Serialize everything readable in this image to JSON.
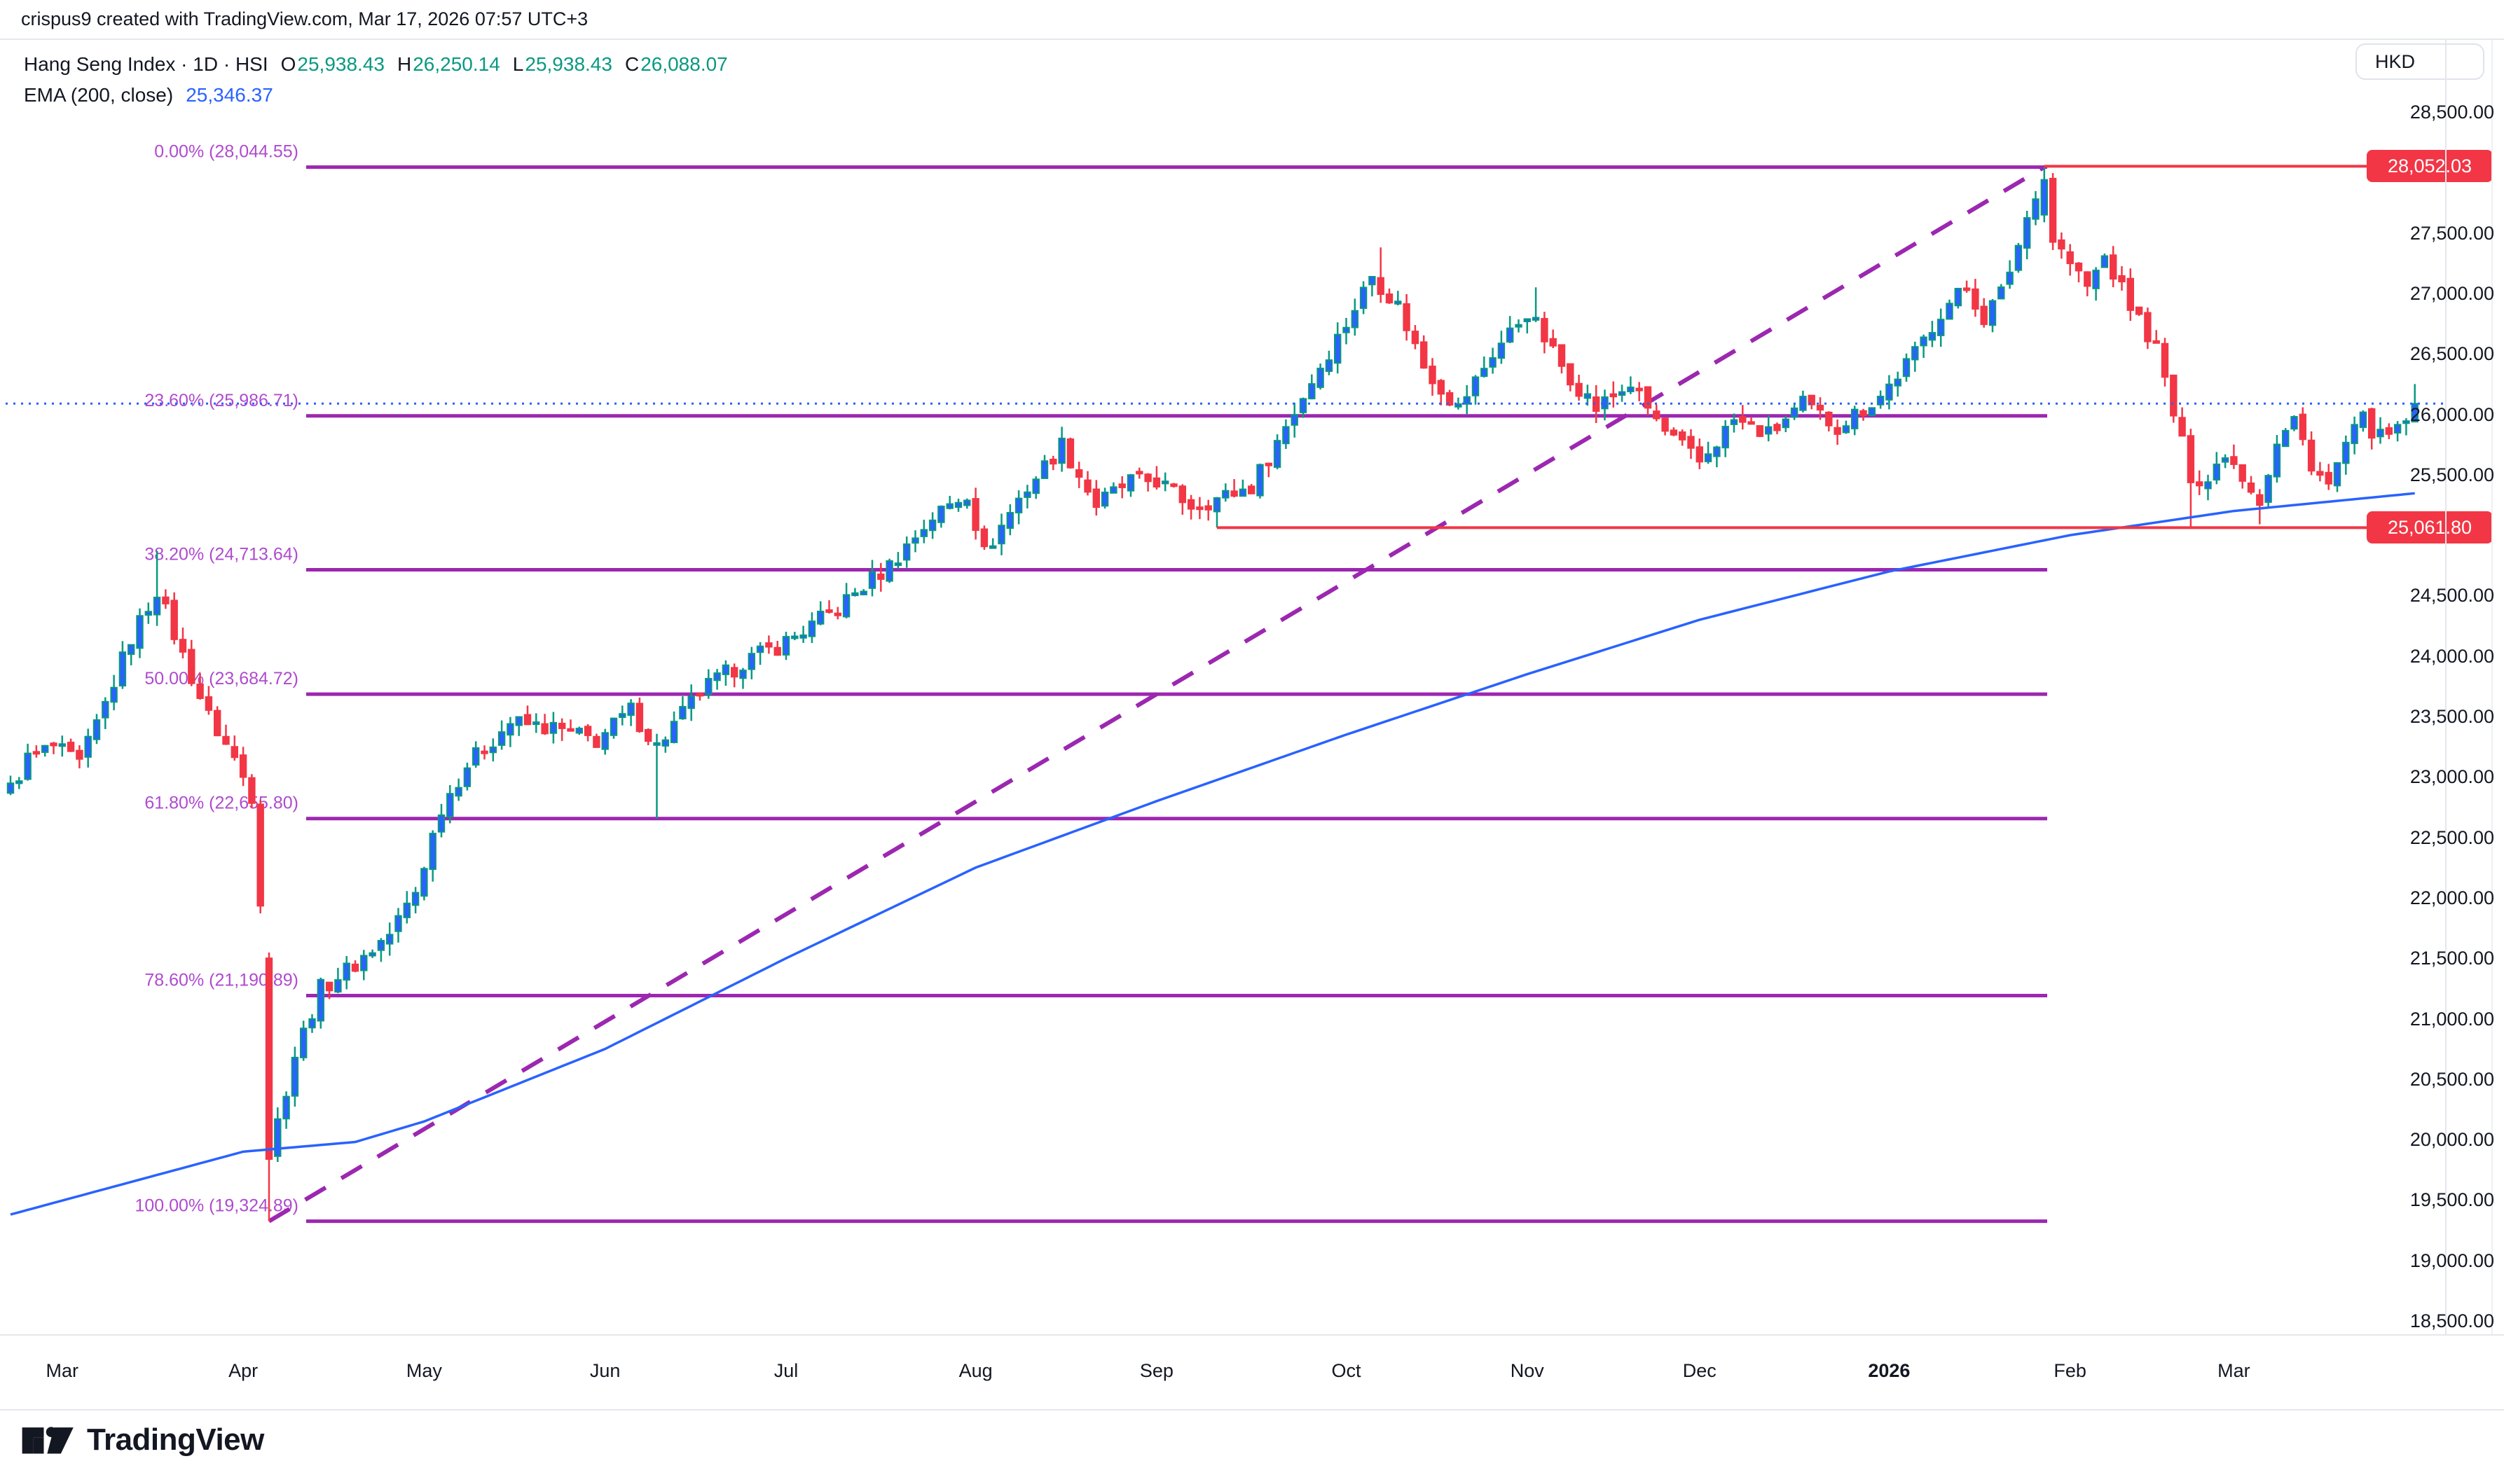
{
  "meta": {
    "credit": "crispus9 created with TradingView.com, Mar 17, 2026 07:57 UTC+3"
  },
  "legend": {
    "title": "Hang Seng Index · 1D · HSI",
    "open_label": "O",
    "open": "25,938.43",
    "high_label": "H",
    "high": "26,250.14",
    "low_label": "L",
    "low": "25,938.43",
    "close_label": "C",
    "close": "26,088.07",
    "ema_label": "EMA (200, close)",
    "ema_value": "25,346.37"
  },
  "axis": {
    "currency": "HKD"
  },
  "footer": {
    "brand": "TradingView"
  },
  "chart_data": {
    "type": "candlestick",
    "title": "Hang Seng Index",
    "timeframe": "1D",
    "symbol": "HSI",
    "currency": "HKD",
    "last_bar": {
      "open": 25938.43,
      "high": 26250.14,
      "low": 25938.43,
      "close": 26088.07
    },
    "ema_200": 25346.37,
    "current_price_line": 26088.07,
    "price_flags": [
      {
        "label": "28,052.03",
        "value": 28052.03
      },
      {
        "label": "25,061.80",
        "value": 25061.8
      }
    ],
    "fib_retracement": {
      "levels": [
        {
          "label": "0.00% (28,044.55)",
          "pct": 0,
          "value": 28044.55
        },
        {
          "label": "23.60% (25,986.71)",
          "pct": 23.6,
          "value": 25986.71
        },
        {
          "label": "38.20% (24,713.64)",
          "pct": 38.2,
          "value": 24713.64
        },
        {
          "label": "50.00% (23,684.72)",
          "pct": 50,
          "value": 23684.72
        },
        {
          "label": "61.80% (22,655.80)",
          "pct": 61.8,
          "value": 22655.8
        },
        {
          "label": "78.60% (21,190.89)",
          "pct": 78.6,
          "value": 21190.89
        },
        {
          "label": "100.00% (19,324.89)",
          "pct": 100,
          "value": 19324.89
        }
      ]
    },
    "trendline": {
      "style": "dashed",
      "from_value": 19324.89,
      "to_value": 28044.55
    },
    "y_axis": {
      "ticks": [
        {
          "t": "28,500.00",
          "v": 28500
        },
        {
          "t": "27,500.00",
          "v": 27500
        },
        {
          "t": "27,000.00",
          "v": 27000
        },
        {
          "t": "26,500.00",
          "v": 26500
        },
        {
          "t": "26,000.00",
          "v": 26000
        },
        {
          "t": "25,500.00",
          "v": 25500
        },
        {
          "t": "24,500.00",
          "v": 24500
        },
        {
          "t": "24,000.00",
          "v": 24000
        },
        {
          "t": "23,500.00",
          "v": 23500
        },
        {
          "t": "23,000.00",
          "v": 23000
        },
        {
          "t": "22,500.00",
          "v": 22500
        },
        {
          "t": "22,000.00",
          "v": 22000
        },
        {
          "t": "21,500.00",
          "v": 21500
        },
        {
          "t": "21,000.00",
          "v": 21000
        },
        {
          "t": "20,500.00",
          "v": 20500
        },
        {
          "t": "20,000.00",
          "v": 20000
        },
        {
          "t": "19,500.00",
          "v": 19500
        },
        {
          "t": "19,000.00",
          "v": 19000
        },
        {
          "t": "18,500.00",
          "v": 18500
        }
      ],
      "note": "28,000.00 and 25,000.00 ticks hidden behind red price flags"
    },
    "x_axis": {
      "months": [
        {
          "label": "Mar"
        },
        {
          "label": "Apr"
        },
        {
          "label": "May"
        },
        {
          "label": "Jun"
        },
        {
          "label": "Jul"
        },
        {
          "label": "Aug"
        },
        {
          "label": "Sep"
        },
        {
          "label": "Oct"
        },
        {
          "label": "Nov"
        },
        {
          "label": "Dec"
        },
        {
          "label": "2026",
          "bold": true
        },
        {
          "label": "Feb"
        },
        {
          "label": "Mar"
        }
      ],
      "start": "Feb 2025",
      "end": "Mar 2026"
    },
    "candles_approx": {
      "note": "approximate daily closes reconstructed from chart, [tradingDayIndex, close]",
      "anchors": [
        [
          0,
          22900
        ],
        [
          2,
          23150
        ],
        [
          5,
          23250
        ],
        [
          8,
          23100
        ],
        [
          11,
          23600
        ],
        [
          14,
          24150
        ],
        [
          17,
          24550
        ],
        [
          20,
          24000
        ],
        [
          23,
          23500
        ],
        [
          26,
          23150
        ],
        [
          28,
          22850
        ],
        [
          29,
          22000
        ],
        [
          30,
          19870
        ],
        [
          31,
          20150
        ],
        [
          33,
          20700
        ],
        [
          36,
          21250
        ],
        [
          40,
          21450
        ],
        [
          44,
          21700
        ],
        [
          47,
          22050
        ],
        [
          50,
          22750
        ],
        [
          53,
          23100
        ],
        [
          58,
          23450
        ],
        [
          63,
          23400
        ],
        [
          68,
          23300
        ],
        [
          72,
          23550
        ],
        [
          75,
          23250
        ],
        [
          80,
          23700
        ],
        [
          85,
          23950
        ],
        [
          89,
          24080
        ],
        [
          93,
          24250
        ],
        [
          96,
          24400
        ],
        [
          102,
          24750
        ],
        [
          107,
          25150
        ],
        [
          111,
          25350
        ],
        [
          113,
          24850
        ],
        [
          117,
          25300
        ],
        [
          122,
          25750
        ],
        [
          126,
          25250
        ],
        [
          130,
          25450
        ],
        [
          133,
          25450
        ],
        [
          137,
          25250
        ],
        [
          140,
          25300
        ],
        [
          144,
          25400
        ],
        [
          148,
          25900
        ],
        [
          152,
          26400
        ],
        [
          155,
          26750
        ],
        [
          158,
          27150
        ],
        [
          161,
          26900
        ],
        [
          164,
          26400
        ],
        [
          168,
          26050
        ],
        [
          172,
          26500
        ],
        [
          176,
          26850
        ],
        [
          180,
          26400
        ],
        [
          184,
          26050
        ],
        [
          188,
          26250
        ],
        [
          192,
          25850
        ],
        [
          196,
          25600
        ],
        [
          200,
          25950
        ],
        [
          204,
          25830
        ],
        [
          208,
          26080
        ],
        [
          212,
          25900
        ],
        [
          217,
          26150
        ],
        [
          221,
          26500
        ],
        [
          224,
          26850
        ],
        [
          227,
          27050
        ],
        [
          229,
          26800
        ],
        [
          231,
          27000
        ],
        [
          233,
          27400
        ],
        [
          235,
          27850
        ],
        [
          236,
          27950
        ],
        [
          237,
          27450
        ],
        [
          239,
          27250
        ],
        [
          241,
          27050
        ],
        [
          243,
          27300
        ],
        [
          246,
          26900
        ],
        [
          249,
          26550
        ],
        [
          251,
          26000
        ],
        [
          253,
          25500
        ],
        [
          255,
          25450
        ],
        [
          257,
          25700
        ],
        [
          259,
          25500
        ],
        [
          261,
          25300
        ],
        [
          263,
          25750
        ],
        [
          265,
          25950
        ],
        [
          267,
          25600
        ],
        [
          269,
          25400
        ],
        [
          271,
          25750
        ],
        [
          273,
          25950
        ],
        [
          275,
          25800
        ],
        [
          277,
          25850
        ],
        [
          279,
          26088.07
        ]
      ],
      "overrides": {
        "17": {
          "high": 24870
        },
        "30": {
          "open": 21500,
          "low": 19324.89
        },
        "75": {
          "low": 22655.8
        },
        "140": {
          "low": 25061.8
        },
        "159": {
          "high": 27380
        },
        "177": {
          "high": 27050
        },
        "236": {
          "open": 27650,
          "high": 28044.55
        },
        "237": {
          "open": 27950
        },
        "253": {
          "low": 25061.8
        },
        "261": {
          "low": 25090
        },
        "279": {
          "open": 25938.43,
          "high": 26250.14,
          "low": 25938.43,
          "close": 26088.07
        }
      }
    },
    "ema_path": [
      [
        0,
        19380
      ],
      [
        27,
        19900
      ],
      [
        40,
        19980
      ],
      [
        48,
        20150
      ],
      [
        69,
        20750
      ],
      [
        90,
        21500
      ],
      [
        112,
        22250
      ],
      [
        133,
        22800
      ],
      [
        155,
        23350
      ],
      [
        176,
        23850
      ],
      [
        196,
        24300
      ],
      [
        218,
        24700
      ],
      [
        239,
        25000
      ],
      [
        258,
        25200
      ],
      [
        279,
        25346.37
      ]
    ],
    "colors": {
      "up_body": "#2962FF",
      "up_border": "#089981",
      "down": "#F23645",
      "fib_line": "#9C27B0",
      "fib_text": "#AF4BCF",
      "ema": "#2962FF",
      "price_line": "#2962FF",
      "flag_bg": "#F23645",
      "text": "#131722"
    }
  }
}
